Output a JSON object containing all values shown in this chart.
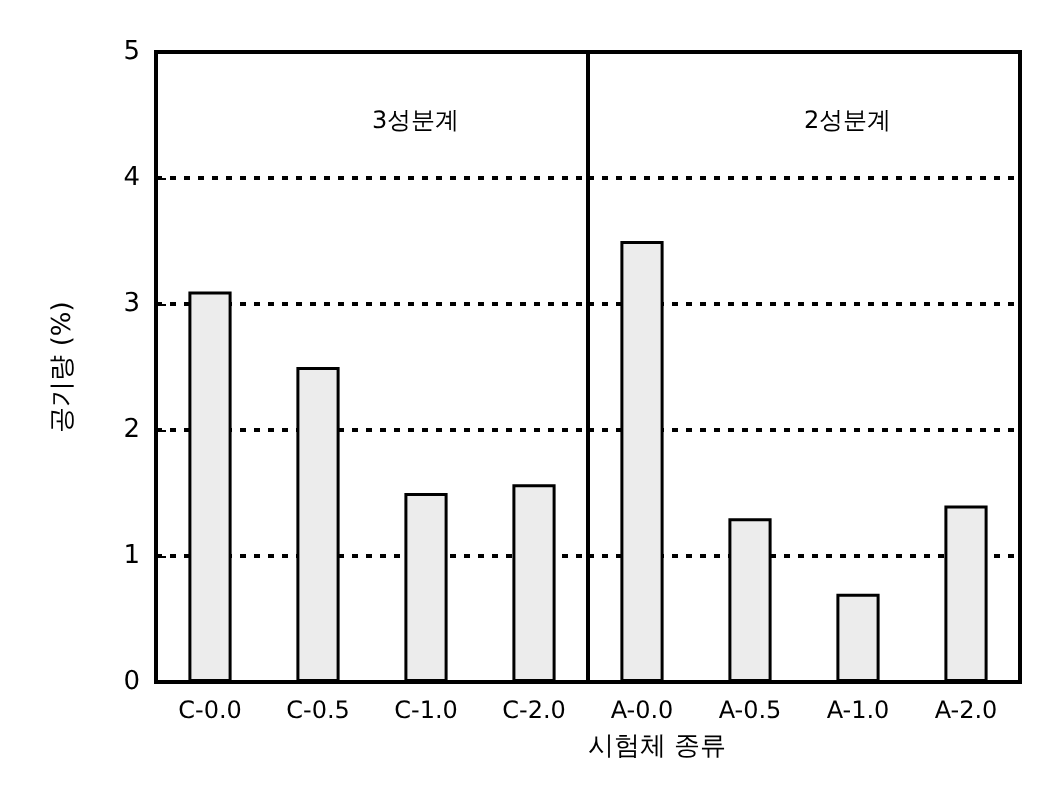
{
  "chart_data": [
    {
      "type": "bar",
      "title": "3성분계",
      "xlabel": "시험체 종류",
      "ylabel": "공기량 (%)",
      "categories": [
        "C-0.0",
        "C-0.5",
        "C-1.0",
        "C-2.0"
      ],
      "values": [
        3.1,
        2.5,
        1.5,
        1.57
      ],
      "color": "#ececec",
      "ylim": [
        0,
        5
      ],
      "yticks": [
        0,
        1,
        2,
        3,
        4,
        5
      ],
      "grid": "y"
    },
    {
      "type": "bar",
      "title": "2성분계",
      "categories": [
        "A-0.0",
        "A-0.5",
        "A-1.0",
        "A-2.0"
      ],
      "values": [
        3.5,
        1.3,
        0.7,
        1.4
      ],
      "color": "#ececec",
      "ylim": [
        0,
        5
      ],
      "yticks": [
        0,
        1,
        2,
        3,
        4,
        5
      ],
      "grid": "y",
      "tick_labels": "x"
    }
  ]
}
